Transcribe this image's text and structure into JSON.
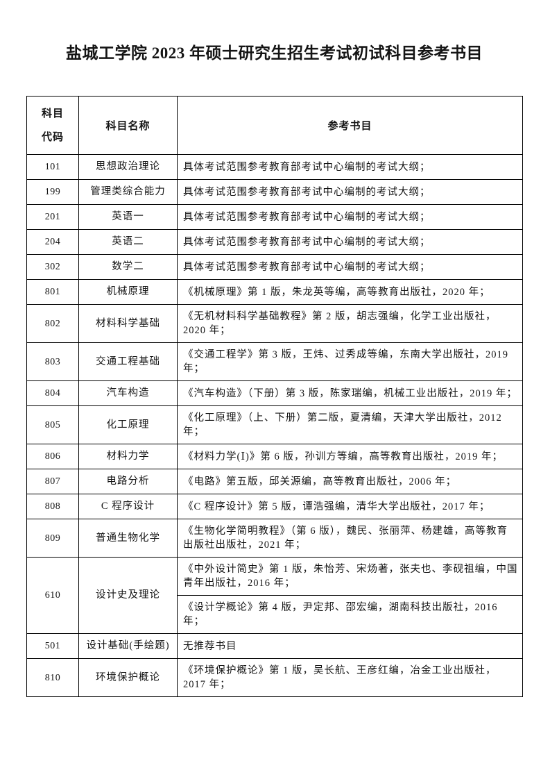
{
  "title": "盐城工学院 2023 年硕士研究生招生考试初试科目参考书目",
  "table": {
    "headers": [
      "科目\n代码",
      "科目名称",
      "参考书目"
    ],
    "rows": [
      {
        "code": "101",
        "name": "思想政治理论",
        "refs": [
          "具体考试范围参考教育部考试中心编制的考试大纲；"
        ]
      },
      {
        "code": "199",
        "name": "管理类综合能力",
        "refs": [
          "具体考试范围参考教育部考试中心编制的考试大纲；"
        ]
      },
      {
        "code": "201",
        "name": "英语一",
        "refs": [
          "具体考试范围参考教育部考试中心编制的考试大纲；"
        ]
      },
      {
        "code": "204",
        "name": "英语二",
        "refs": [
          "具体考试范围参考教育部考试中心编制的考试大纲；"
        ]
      },
      {
        "code": "302",
        "name": "数学二",
        "refs": [
          "具体考试范围参考教育部考试中心编制的考试大纲；"
        ]
      },
      {
        "code": "801",
        "name": "机械原理",
        "refs": [
          "《机械原理》第 1 版，朱龙英等编，高等教育出版社，2020 年；"
        ]
      },
      {
        "code": "802",
        "name": "材料科学基础",
        "refs": [
          "《无机材料科学基础教程》第 2 版，胡志强编，化学工业出版社，2020 年；"
        ]
      },
      {
        "code": "803",
        "name": "交通工程基础",
        "refs": [
          "《交通工程学》第 3 版，王炜、过秀成等编，东南大学出版社，2019 年；"
        ]
      },
      {
        "code": "804",
        "name": "汽车构造",
        "refs": [
          "《汽车构造》（下册）第 3 版，陈家瑞编，机械工业出版社，2019 年；"
        ]
      },
      {
        "code": "805",
        "name": "化工原理",
        "refs": [
          "《化工原理》（上、下册）第二版，夏清编，天津大学出版社，2012 年；"
        ]
      },
      {
        "code": "806",
        "name": "材料力学",
        "refs": [
          "《材料力学(Ⅰ)》第 6 版，孙训方等编，高等教育出版社，2019 年；"
        ]
      },
      {
        "code": "807",
        "name": "电路分析",
        "refs": [
          "《电路》第五版，邱关源编，高等教育出版社，2006 年；"
        ]
      },
      {
        "code": "808",
        "name": "C 程序设计",
        "refs": [
          "《C 程序设计》第 5 版，谭浩强编，清华大学出版社，2017 年；"
        ]
      },
      {
        "code": "809",
        "name": "普通生物化学",
        "refs": [
          "《生物化学简明教程》（第 6 版），魏民、张丽萍、杨建雄，高等教育出版社出版社，2021 年；"
        ]
      },
      {
        "code": "610",
        "name": "设计史及理论",
        "refs": [
          "《中外设计简史》第 1 版，朱怡芳、宋炀著，张夫也、李砚祖编，中国青年出版社，2016 年；",
          "《设计学概论》第 4 版，尹定邦、邵宏编，湖南科技出版社，2016 年；"
        ]
      },
      {
        "code": "501",
        "name": "设计基础(手绘题)",
        "refs": [
          "无推荐书目"
        ]
      },
      {
        "code": "810",
        "name": "环境保护概论",
        "refs": [
          "《环境保护概论》第 1 版，吴长航、王彦红编，冶金工业出版社，2017 年；"
        ]
      }
    ]
  }
}
